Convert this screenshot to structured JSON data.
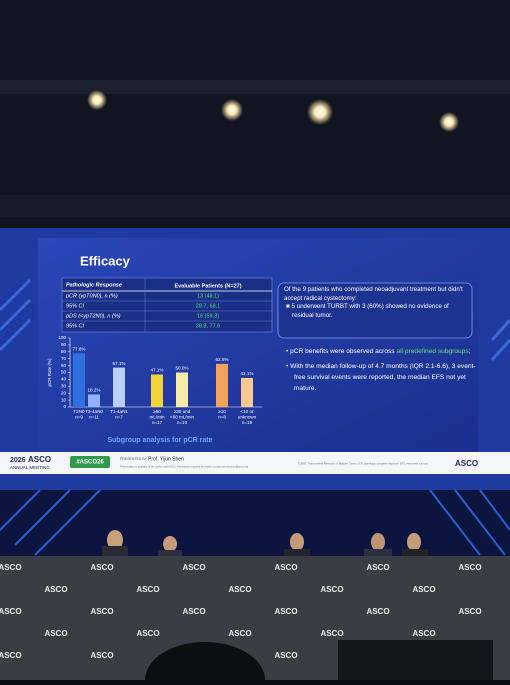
{
  "slide": {
    "title": "Efficacy",
    "table": {
      "header": [
        "Pathologic Response",
        "Evaluable Patients (N=27)"
      ],
      "rows": [
        [
          "pCR (ypT0N0), n (%)",
          "13 (48.1)"
        ],
        [
          "95% CI",
          "28.7, 68.1"
        ],
        [
          "pDS (<ypT2N0), n (%)",
          "16 (59.3)"
        ],
        [
          "95% CI",
          "38.8, 77.6"
        ]
      ]
    },
    "box": {
      "text": "Of the 9 patients who completed neoadjuvant treatment but didn't accept radical cystectomy:",
      "bullet": "5 underwent TURBT with 3 (60%) showed no evidence of residual tumor."
    },
    "bullets": [
      [
        "pCR benefits were observed across ",
        "all predefined subgroups",
        ";"
      ],
      [
        "With the median follow-up of 4.7 months (IQR 2.1-6.6), 3 event-free survival events were reported, the median EFS not yet mature."
      ]
    ],
    "chart_data": {
      "type": "bar",
      "y_label": "pCR Rate (%)",
      "categories": [
        [
          "T2N0",
          "n=9"
        ],
        [
          "T3-4aN0",
          "n=11"
        ],
        [
          "T1-4aN1",
          "n=7"
        ],
        [
          "≥60",
          "mL/min",
          "n=17"
        ],
        [
          "≥30 and",
          "<60 mL/min",
          "n=10"
        ],
        [
          "≥10",
          "n=8"
        ],
        [
          "<10 or",
          "unknown",
          "n=19"
        ]
      ],
      "values": [
        77.8,
        18.2,
        57.1,
        47.1,
        50.0,
        62.5,
        42.1
      ],
      "value_labels": [
        "77.8%",
        "18.2%",
        "57.1%",
        "47.1%",
        "50.0%",
        "62.5%",
        "42.1%"
      ],
      "colors": [
        "#2f6fe0",
        "#8fb3ff",
        "#b9d0ff",
        "#f2d43a",
        "#f6eaa8",
        "#f2a55a",
        "#f7c88f"
      ],
      "ylim": [
        0,
        100
      ],
      "yticks": [
        0,
        10,
        20,
        30,
        40,
        50,
        60,
        70,
        80,
        90,
        100
      ],
      "caption": "Subgroup analysis for pCR rate"
    },
    "footer": {
      "meeting_year": "2026",
      "meeting_org": "ASCO",
      "meeting_name": "ANNUAL MEETING",
      "hashtag": "#ASCO26",
      "presented_by": "PRESENTED BY:",
      "presenter": "Prof. Yijun Shen",
      "disclaimer": "Presentation is property of the author and ASCO. Permission required for reuse; contact permissions@asco.org.",
      "abbreviations": "TURBT, Transurethral Resection of Bladder Tumor; pCR, pathologic complete response; EFS, event-free survival.",
      "logo": "ASCO"
    }
  },
  "banner_text": "ASCO"
}
